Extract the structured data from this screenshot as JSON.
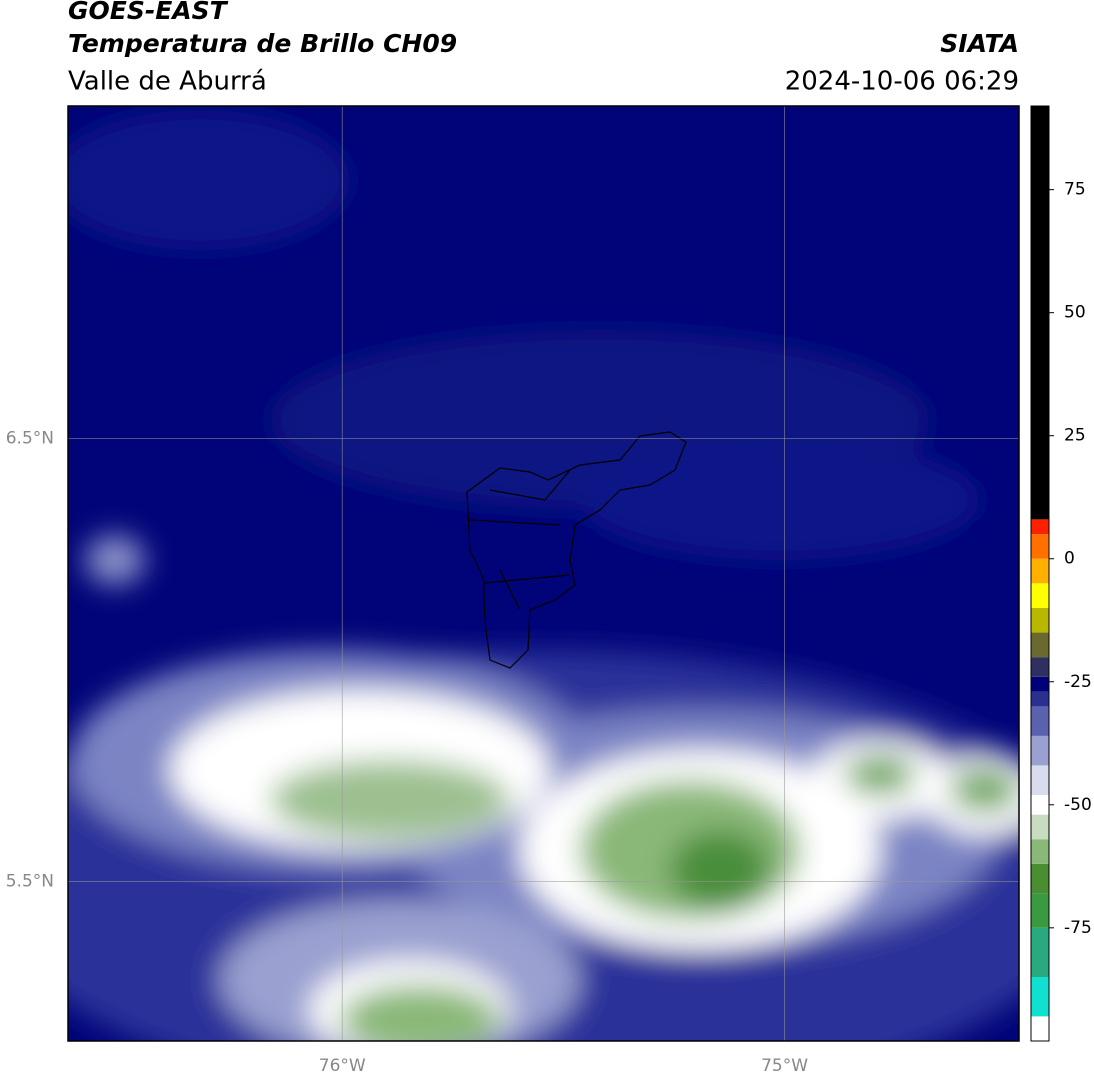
{
  "header": {
    "title": "GOES-EAST",
    "subtitle": "Temperatura de Brillo CH09",
    "region": "Valle de Aburrá",
    "source": "SIATA",
    "datetime": "2024-10-06 06:29"
  },
  "map": {
    "xlim": [
      -76.62,
      -74.47
    ],
    "ylim": [
      5.14,
      7.25
    ],
    "xticks": [
      {
        "value": -76,
        "label": "76°W"
      },
      {
        "value": -75,
        "label": "75°W"
      }
    ],
    "yticks": [
      {
        "value": 6.5,
        "label": "6.5°N"
      },
      {
        "value": 5.5,
        "label": "5.5°N"
      }
    ],
    "grid": true
  },
  "colorbar": {
    "lim": [
      -98,
      92
    ],
    "ticks": [
      75,
      50,
      25,
      0,
      -25,
      -50,
      -75
    ],
    "stops": [
      {
        "value": -98,
        "color": "#ffffff"
      },
      {
        "value": -93,
        "color": "#10e0d0"
      },
      {
        "value": -85,
        "color": "#2aa880"
      },
      {
        "value": -75,
        "color": "#3a9a40"
      },
      {
        "value": -68,
        "color": "#4a8e32"
      },
      {
        "value": -62,
        "color": "#8ab878"
      },
      {
        "value": -57,
        "color": "#c8dcc0"
      },
      {
        "value": -52,
        "color": "#ffffff"
      },
      {
        "value": -48,
        "color": "#d8dced"
      },
      {
        "value": -42,
        "color": "#9aa0d0"
      },
      {
        "value": -36,
        "color": "#5a62b0"
      },
      {
        "value": -30,
        "color": "#2a3090"
      },
      {
        "value": -27,
        "color": "#00007a"
      },
      {
        "value": -24,
        "color": "#303060"
      },
      {
        "value": -20,
        "color": "#6a6a30"
      },
      {
        "value": -15,
        "color": "#b8b800"
      },
      {
        "value": -10,
        "color": "#ffff00"
      },
      {
        "value": -5,
        "color": "#ffb000"
      },
      {
        "value": 0,
        "color": "#ff7000"
      },
      {
        "value": 5,
        "color": "#ff2000"
      },
      {
        "value": 8,
        "color": "#000000"
      }
    ]
  }
}
